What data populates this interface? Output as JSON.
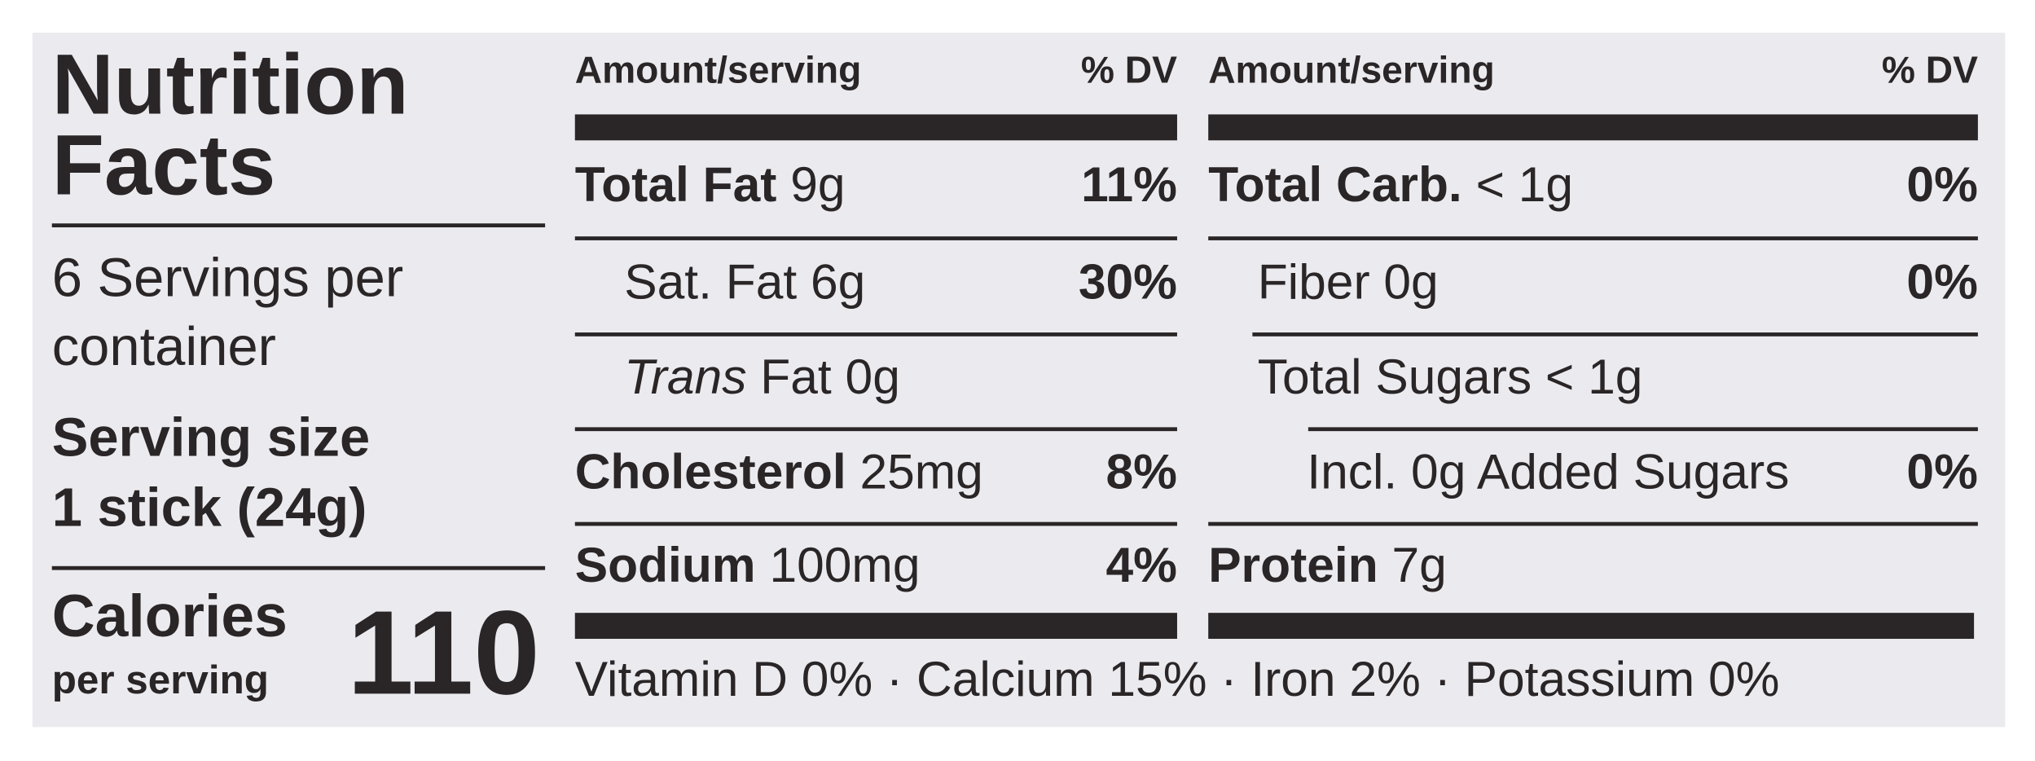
{
  "title_lines": [
    "Nutrition",
    "Facts"
  ],
  "servings_lines": [
    "6 Servings per",
    "container"
  ],
  "serving_size_lines": [
    "Serving size",
    "1 stick (24g)"
  ],
  "calories": {
    "label": "Calories",
    "sublabel": "per serving",
    "value": 110
  },
  "columns": [
    {
      "header": {
        "amount": "Amount/serving",
        "dv": "% DV"
      },
      "rows": [
        {
          "name": "Total Fat",
          "amount": "9g",
          "dv": "11%",
          "bold": true,
          "indent": 0
        },
        {
          "name": "Sat. Fat",
          "amount": "6g",
          "dv": "30%",
          "bold": false,
          "indent": 1
        },
        {
          "name": "Trans",
          "amount": "Fat 0g",
          "bold": false,
          "italic_name": true,
          "indent": 1
        },
        {
          "name": "Cholesterol",
          "amount": "25mg",
          "dv": "8%",
          "bold": true,
          "indent": 0
        },
        {
          "name": "Sodium",
          "amount": "100mg",
          "dv": "4%",
          "bold": true,
          "indent": 0
        }
      ]
    },
    {
      "header": {
        "amount": "Amount/serving",
        "dv": "% DV"
      },
      "rows": [
        {
          "name": "Total Carb.",
          "amount": "< 1g",
          "dv": "0%",
          "bold": true,
          "indent": 0
        },
        {
          "name": "Fiber 0g",
          "dv": "0%",
          "bold": false,
          "indent": 1
        },
        {
          "name": "Total Sugars",
          "amount": "< 1g",
          "bold": false,
          "indent": 1
        },
        {
          "name": "Incl. 0g Added Sugars",
          "dv": "0%",
          "bold": false,
          "indent": 2
        },
        {
          "name": "Protein",
          "amount": "7g",
          "bold": true,
          "indent": 0
        }
      ]
    }
  ],
  "footer": {
    "items": [
      "Vitamin D 0%",
      "Calcium 15%",
      "Iron 2%",
      "Potassium 0%"
    ],
    "separator": "·"
  }
}
